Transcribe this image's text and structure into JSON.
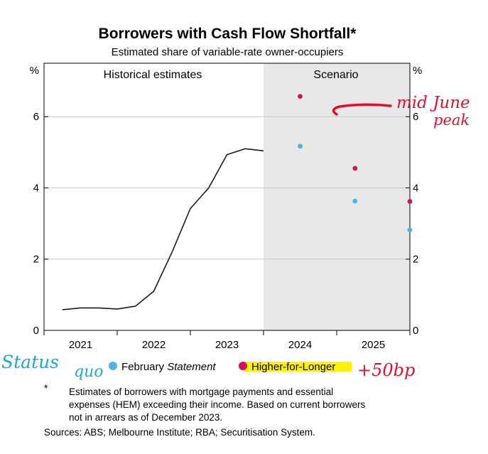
{
  "chart_data": {
    "type": "line",
    "title": "Borrowers with Cash Flow Shortfall*",
    "subtitle": "Estimated share of variable-rate owner-occupiers",
    "y_unit_left": "%",
    "y_unit_right": "%",
    "ylim": [
      0,
      7.5
    ],
    "y_ticks": [
      0,
      2,
      4,
      6
    ],
    "x_ticks": [
      "2021",
      "2022",
      "2023",
      "2024",
      "2025"
    ],
    "xlim": [
      2020.5,
      2025.5
    ],
    "grid": true,
    "region_labels": {
      "historical": "Historical estimates",
      "scenario": "Scenario"
    },
    "scenario_start": 2023.5,
    "series": [
      {
        "style": "line",
        "color": "#1a1a1a",
        "x": [
          2020.75,
          2021.0,
          2021.25,
          2021.5,
          2021.75,
          2022.0,
          2022.25,
          2022.5,
          2022.75,
          2023.0,
          2023.25,
          2023.5
        ],
        "y": [
          0.58,
          0.63,
          0.63,
          0.6,
          0.68,
          1.1,
          2.2,
          3.42,
          4.0,
          4.93,
          5.1,
          5.04
        ]
      },
      {
        "name": "February Statement",
        "style": "dots",
        "color": "#4db3e6",
        "x": [
          2024.0,
          2024.75,
          2025.5
        ],
        "y": [
          5.17,
          3.63,
          2.82
        ]
      },
      {
        "name": "Higher-for-Longer",
        "style": "dots",
        "color": "#d6105a",
        "x": [
          2024.0,
          2024.75,
          2025.5
        ],
        "y": [
          6.57,
          4.55,
          3.62
        ]
      }
    ],
    "legend": {
      "placement": "bottom",
      "items": [
        {
          "text": "February ",
          "italic": "Statement",
          "color": "#4db3e6"
        },
        {
          "text": "Higher-for-Longer",
          "italic": "",
          "color": "#d6105a"
        }
      ]
    },
    "footnote_marker": "*",
    "footnote_lines": [
      "Estimates of borrowers with mortgage payments and essential",
      "expenses (HEM) exceeding their income. Based on current borrowers",
      "not in arrears as of December 2023."
    ],
    "sources": "Sources: ABS; Melbourne Institute; RBA; Securitisation System."
  },
  "annotations": {
    "red_note_line1": "mid June",
    "red_note_line2": "peak",
    "red_plus": "+50bp",
    "blue_note_line1": "Status",
    "blue_note_line2": "quo",
    "red_color": "#e0102a",
    "blue_color": "#18a9d8",
    "highlight_color": "#fff200"
  }
}
